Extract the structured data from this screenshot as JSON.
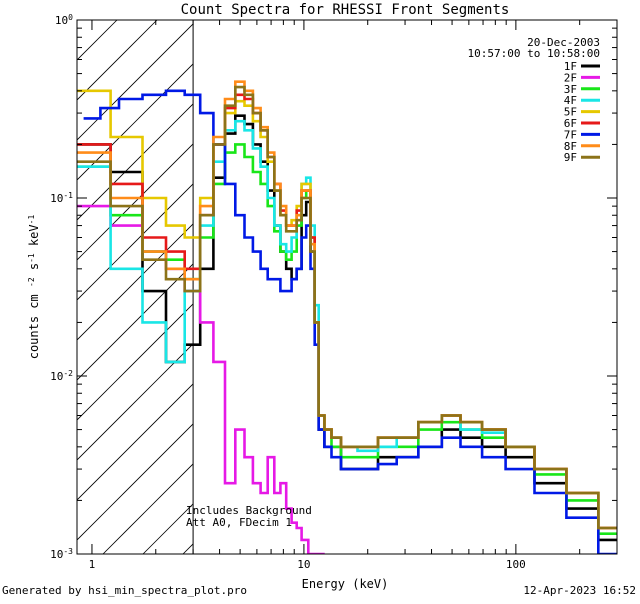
{
  "chart_data": {
    "type": "line",
    "title": "Count Spectra for RHESSI Front Segments",
    "xlabel": "Energy (keV)",
    "ylabel": "counts cm^-2 s^-1 keV^-1",
    "xscale": "log",
    "yscale": "log",
    "xlim": [
      0.85,
      300
    ],
    "ylim": [
      0.001,
      1.0
    ],
    "x_ticks": [
      {
        "value": 1,
        "label": "1"
      },
      {
        "value": 10,
        "label": "10"
      },
      {
        "value": 100,
        "label": "100"
      }
    ],
    "y_ticks": [
      {
        "value": 1,
        "label": "10^0"
      },
      {
        "value": 0.1,
        "label": "10^-1"
      },
      {
        "value": 0.01,
        "label": "10^-2"
      },
      {
        "value": 0.001,
        "label": "10^-3"
      }
    ],
    "date": "20-Dec-2003",
    "time_range": "10:57:00 to 10:58:00",
    "annotations": [
      "Includes Background",
      "Att A0, FDecim 1"
    ],
    "hatched_region_keV": [
      0.85,
      3
    ],
    "legend_position": "top-right",
    "series": [
      {
        "name": "1F",
        "color": "#000000",
        "x": [
          1.0,
          1.5,
          2.0,
          2.5,
          3.0,
          3.5,
          4.0,
          4.5,
          5.0,
          5.5,
          6.0,
          6.5,
          7.0,
          7.5,
          8.0,
          8.5,
          9.0,
          9.5,
          10.0,
          10.5,
          11.0,
          11.5,
          12.0,
          13.0,
          14.0,
          16.0,
          20.0,
          25.0,
          30.0,
          40.0,
          50.0,
          60.0,
          80.0,
          100.0,
          150.0,
          200.0,
          300.0
        ],
        "y": [
          0.2,
          0.14,
          0.03,
          0.012,
          0.015,
          0.04,
          0.13,
          0.23,
          0.29,
          0.26,
          0.2,
          0.16,
          0.11,
          0.07,
          0.05,
          0.04,
          0.035,
          0.04,
          0.08,
          0.095,
          0.05,
          0.02,
          0.005,
          0.004,
          0.004,
          0.003,
          0.003,
          0.0035,
          0.0035,
          0.004,
          0.005,
          0.0045,
          0.004,
          0.0035,
          0.0025,
          0.0018,
          0.0012
        ]
      },
      {
        "name": "2F",
        "color": "#e619e6",
        "x": [
          1.0,
          1.5,
          2.0,
          2.5,
          3.0,
          3.5,
          4.0,
          4.5,
          5.0,
          5.5,
          6.0,
          6.5,
          7.0,
          7.5,
          8.0,
          8.5,
          9.0,
          9.5,
          10.0,
          11.0,
          12.0
        ],
        "y": [
          0.09,
          0.07,
          0.05,
          0.04,
          0.03,
          0.02,
          0.012,
          0.0025,
          0.005,
          0.0035,
          0.0025,
          0.0022,
          0.0035,
          0.0022,
          0.0025,
          0.0018,
          0.0015,
          0.0014,
          0.0012,
          0.001,
          0.001
        ]
      },
      {
        "name": "3F",
        "color": "#19e619",
        "x": [
          1.0,
          1.5,
          2.0,
          2.5,
          3.0,
          3.5,
          4.0,
          4.5,
          5.0,
          5.5,
          6.0,
          6.5,
          7.0,
          7.5,
          8.0,
          8.5,
          9.0,
          9.5,
          10.0,
          10.5,
          11.0,
          11.5,
          12.0,
          13.0,
          14.0,
          16.0,
          20.0,
          25.0,
          30.0,
          40.0,
          50.0,
          60.0,
          80.0,
          100.0,
          150.0,
          200.0,
          300.0
        ],
        "y": [
          0.15,
          0.08,
          0.05,
          0.045,
          0.035,
          0.06,
          0.12,
          0.18,
          0.2,
          0.17,
          0.14,
          0.12,
          0.09,
          0.065,
          0.05,
          0.045,
          0.05,
          0.07,
          0.1,
          0.11,
          0.06,
          0.02,
          0.006,
          0.005,
          0.004,
          0.0035,
          0.0035,
          0.004,
          0.004,
          0.005,
          0.0055,
          0.005,
          0.0045,
          0.004,
          0.0028,
          0.002,
          0.0013
        ]
      },
      {
        "name": "4F",
        "color": "#19e6e6",
        "x": [
          1.0,
          1.5,
          2.0,
          2.5,
          3.0,
          3.5,
          4.0,
          4.5,
          5.0,
          5.5,
          6.0,
          6.5,
          7.0,
          7.5,
          8.0,
          8.5,
          9.0,
          9.5,
          10.0,
          10.5,
          11.0,
          11.5,
          12.0,
          13.0,
          14.0,
          16.0,
          20.0,
          25.0,
          30.0,
          40.0,
          50.0,
          60.0,
          80.0,
          100.0,
          150.0,
          200.0,
          300.0
        ],
        "y": [
          0.15,
          0.04,
          0.02,
          0.012,
          0.03,
          0.07,
          0.16,
          0.24,
          0.27,
          0.24,
          0.19,
          0.15,
          0.1,
          0.07,
          0.055,
          0.05,
          0.06,
          0.08,
          0.12,
          0.13,
          0.07,
          0.025,
          0.006,
          0.005,
          0.0045,
          0.004,
          0.0038,
          0.004,
          0.0045,
          0.0055,
          0.006,
          0.005,
          0.0048,
          0.004,
          0.003,
          0.0022,
          0.0014
        ]
      },
      {
        "name": "5F",
        "color": "#e6c800",
        "x": [
          1.0,
          1.5,
          2.0,
          2.5,
          3.0,
          3.5,
          4.0,
          4.5,
          5.0,
          5.5,
          6.0,
          6.5,
          7.0,
          7.5,
          8.0,
          8.5,
          9.0,
          9.5,
          10.0,
          10.5,
          11.0,
          11.5,
          12.0,
          13.0,
          14.0,
          16.0,
          20.0,
          25.0,
          30.0,
          40.0,
          50.0,
          60.0,
          80.0,
          100.0,
          150.0,
          200.0,
          300.0
        ],
        "y": [
          0.4,
          0.22,
          0.1,
          0.07,
          0.06,
          0.1,
          0.2,
          0.3,
          0.35,
          0.33,
          0.27,
          0.22,
          0.16,
          0.11,
          0.08,
          0.07,
          0.075,
          0.09,
          0.12,
          0.12,
          0.06,
          0.02,
          0.006,
          0.005,
          0.0045,
          0.004,
          0.004,
          0.0045,
          0.0045,
          0.0055,
          0.006,
          0.0055,
          0.005,
          0.004,
          0.003,
          0.0022,
          0.0014
        ]
      },
      {
        "name": "6F",
        "color": "#e61919",
        "x": [
          1.0,
          1.5,
          2.0,
          2.5,
          3.0,
          3.5,
          4.0,
          4.5,
          5.0,
          5.5,
          6.0,
          6.5,
          7.0,
          7.5,
          8.0,
          8.5,
          9.0,
          9.5,
          10.0,
          10.5,
          11.0,
          11.5,
          12.0,
          13.0,
          14.0,
          16.0,
          20.0,
          25.0,
          30.0,
          40.0,
          50.0,
          60.0,
          80.0,
          100.0,
          150.0,
          200.0,
          300.0
        ],
        "y": [
          0.2,
          0.12,
          0.06,
          0.05,
          0.04,
          0.08,
          0.2,
          0.32,
          0.38,
          0.36,
          0.3,
          0.24,
          0.17,
          0.12,
          0.085,
          0.07,
          0.07,
          0.085,
          0.11,
          0.11,
          0.06,
          0.02,
          0.006,
          0.005,
          0.0045,
          0.004,
          0.004,
          0.0045,
          0.0045,
          0.0055,
          0.006,
          0.0055,
          0.005,
          0.004,
          0.003,
          0.0022,
          0.0014
        ]
      },
      {
        "name": "7F",
        "color": "#0019e6",
        "x": [
          1.0,
          1.2,
          1.5,
          2.0,
          2.5,
          3.0,
          3.5,
          4.0,
          4.5,
          5.0,
          5.5,
          6.0,
          6.5,
          7.0,
          7.5,
          8.0,
          8.5,
          9.0,
          9.5,
          10.0,
          10.5,
          11.0,
          11.5,
          12.0,
          13.0,
          14.0,
          16.0,
          20.0,
          25.0,
          30.0,
          40.0,
          50.0,
          60.0,
          80.0,
          100.0,
          150.0,
          200.0,
          300.0
        ],
        "y": [
          0.28,
          0.32,
          0.36,
          0.38,
          0.4,
          0.38,
          0.3,
          0.2,
          0.12,
          0.08,
          0.06,
          0.05,
          0.04,
          0.035,
          0.035,
          0.03,
          0.03,
          0.035,
          0.04,
          0.06,
          0.07,
          0.04,
          0.015,
          0.005,
          0.004,
          0.0035,
          0.003,
          0.003,
          0.0032,
          0.0035,
          0.004,
          0.0045,
          0.004,
          0.0035,
          0.003,
          0.0022,
          0.0016,
          0.001
        ]
      },
      {
        "name": "8F",
        "color": "#ff8c19",
        "x": [
          1.0,
          1.5,
          2.0,
          2.5,
          3.0,
          3.5,
          4.0,
          4.5,
          5.0,
          5.5,
          6.0,
          6.5,
          7.0,
          7.5,
          8.0,
          8.5,
          9.0,
          9.5,
          10.0,
          10.5,
          11.0,
          11.5,
          12.0,
          13.0,
          14.0,
          16.0,
          20.0,
          25.0,
          30.0,
          40.0,
          50.0,
          60.0,
          80.0,
          100.0,
          150.0,
          200.0,
          300.0
        ],
        "y": [
          0.18,
          0.1,
          0.05,
          0.04,
          0.035,
          0.09,
          0.22,
          0.36,
          0.45,
          0.4,
          0.32,
          0.25,
          0.18,
          0.12,
          0.09,
          0.07,
          0.07,
          0.08,
          0.11,
          0.11,
          0.055,
          0.02,
          0.006,
          0.005,
          0.0045,
          0.004,
          0.004,
          0.0045,
          0.0045,
          0.0055,
          0.006,
          0.0055,
          0.005,
          0.004,
          0.003,
          0.0022,
          0.0014
        ]
      },
      {
        "name": "9F",
        "color": "#8c7319",
        "x": [
          1.0,
          1.5,
          2.0,
          2.5,
          3.0,
          3.5,
          4.0,
          4.5,
          5.0,
          5.5,
          6.0,
          6.5,
          7.0,
          7.5,
          8.0,
          8.5,
          9.0,
          9.5,
          10.0,
          10.5,
          11.0,
          11.5,
          12.0,
          13.0,
          14.0,
          16.0,
          20.0,
          25.0,
          30.0,
          40.0,
          50.0,
          60.0,
          80.0,
          100.0,
          150.0,
          200.0,
          300.0
        ],
        "y": [
          0.16,
          0.09,
          0.045,
          0.035,
          0.03,
          0.08,
          0.2,
          0.33,
          0.42,
          0.38,
          0.3,
          0.24,
          0.17,
          0.11,
          0.08,
          0.065,
          0.065,
          0.075,
          0.1,
          0.1,
          0.05,
          0.02,
          0.006,
          0.005,
          0.0045,
          0.004,
          0.004,
          0.0045,
          0.0045,
          0.0055,
          0.006,
          0.0055,
          0.005,
          0.004,
          0.003,
          0.0022,
          0.0014
        ]
      }
    ]
  },
  "footer": {
    "generated_by": "Generated by hsi_min_spectra_plot.pro",
    "timestamp": "12-Apr-2023 16:52"
  }
}
